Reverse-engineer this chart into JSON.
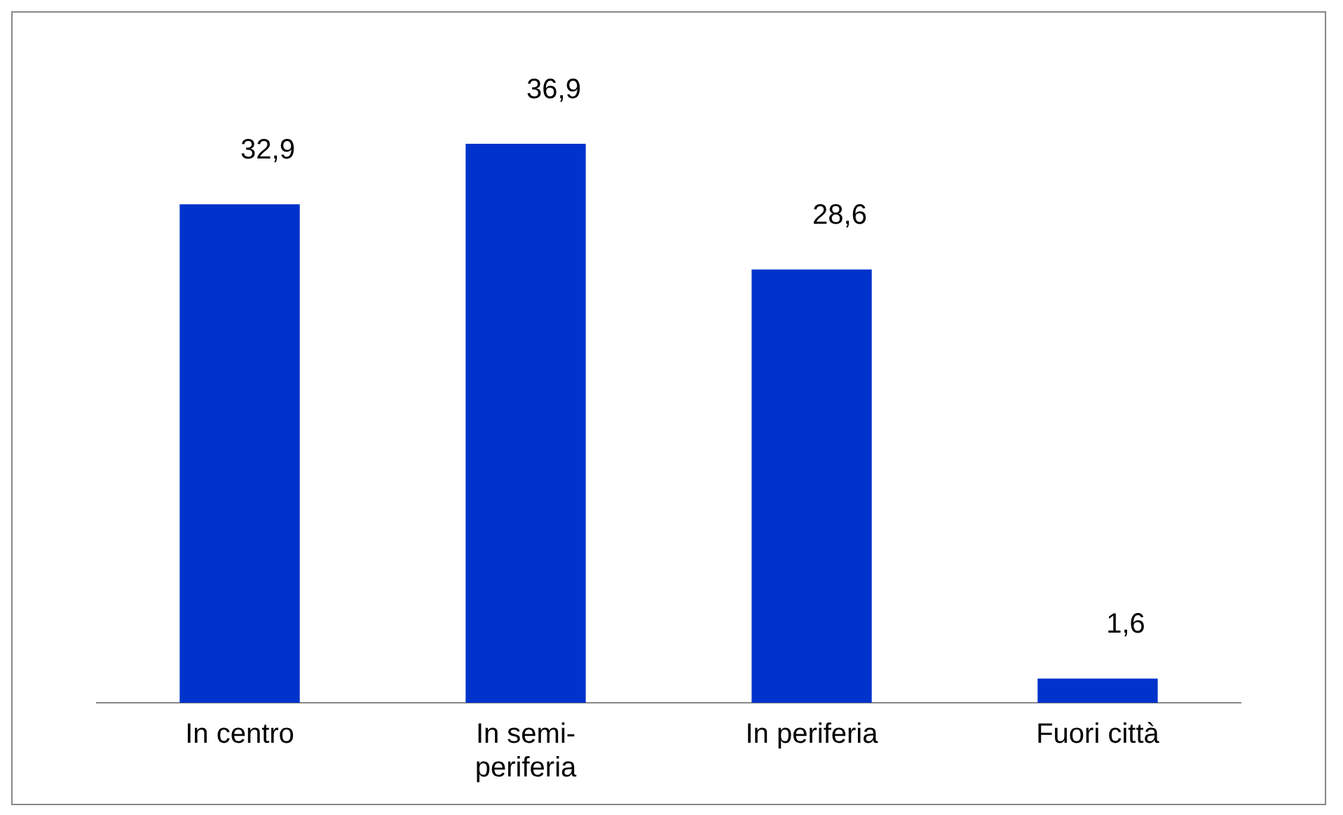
{
  "chart_data": {
    "type": "bar",
    "categories": [
      "In centro",
      "In semi-periferia",
      "In periferia",
      "Fuori città"
    ],
    "values": [
      32.9,
      36.9,
      28.6,
      1.6
    ],
    "value_labels": [
      "32,9",
      "36,9",
      "28,6",
      "1,6"
    ],
    "color": "#0033cc"
  }
}
